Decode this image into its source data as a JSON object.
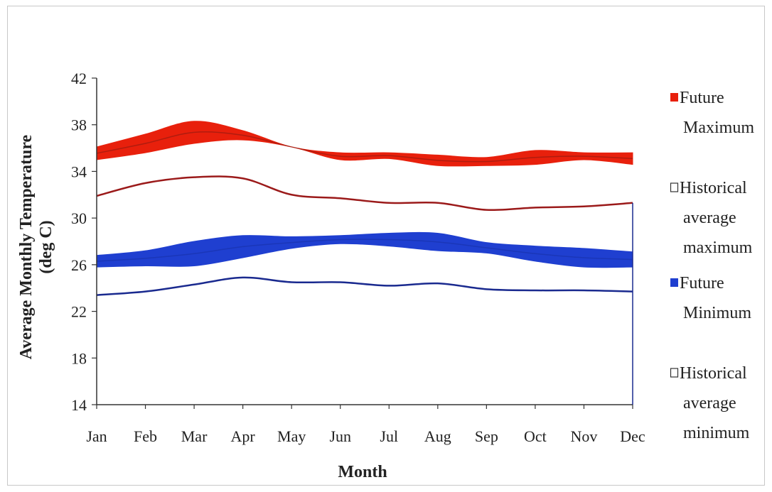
{
  "chart_data": {
    "type": "area",
    "xlabel": "Month",
    "ylabel": "Average Monthly Temperature",
    "ylabel_unit": "(deg C)",
    "categories": [
      "Jan",
      "Feb",
      "Mar",
      "Apr",
      "May",
      "Jun",
      "Jul",
      "Aug",
      "Sep",
      "Oct",
      "Nov",
      "Dec"
    ],
    "ylim": [
      14,
      42
    ],
    "yticks": [
      "14",
      "18",
      "22",
      "26",
      "30",
      "34",
      "38",
      "42"
    ],
    "grid": false,
    "legend_position": "right",
    "series": [
      {
        "name": "Future Maximum",
        "kind": "band",
        "color": "#e8200c",
        "low": [
          35.0,
          35.6,
          36.4,
          36.7,
          36.1,
          35.0,
          35.1,
          34.5,
          34.5,
          34.6,
          35.0,
          34.6
        ],
        "high": [
          36.1,
          37.2,
          38.3,
          37.5,
          36.1,
          35.6,
          35.6,
          35.4,
          35.2,
          35.8,
          35.6,
          35.6
        ]
      },
      {
        "name": "Historical average maximum",
        "kind": "line",
        "color": "#9b1a1a",
        "values": [
          31.9,
          33.0,
          33.5,
          33.4,
          32.0,
          31.7,
          31.3,
          31.3,
          30.7,
          30.9,
          31.0,
          31.3
        ]
      },
      {
        "name": "Future Minimum",
        "kind": "band",
        "color": "#1f3fd0",
        "low": [
          25.8,
          25.9,
          25.9,
          26.6,
          27.4,
          27.8,
          27.6,
          27.2,
          27.0,
          26.3,
          25.8,
          25.8
        ],
        "high": [
          26.8,
          27.2,
          28.0,
          28.5,
          28.4,
          28.5,
          28.7,
          28.7,
          27.9,
          27.6,
          27.4,
          27.1
        ]
      },
      {
        "name": "Historical average minimum",
        "kind": "line",
        "color": "#1a2a8f",
        "values": [
          23.4,
          23.7,
          24.3,
          24.9,
          24.5,
          24.5,
          24.2,
          24.4,
          23.9,
          23.8,
          23.8,
          23.7
        ]
      }
    ]
  },
  "legend": [
    {
      "lines": [
        "Future",
        "Maximum"
      ],
      "swatch": "filled",
      "color": "#e8200c"
    },
    {
      "lines": [
        "Historical",
        "average",
        "maximum"
      ],
      "swatch": "outline",
      "color": "#9b1a1a"
    },
    {
      "lines": [
        "Future",
        "Minimum"
      ],
      "swatch": "filled",
      "color": "#1f3fd0"
    },
    {
      "lines": [
        "Historical",
        "average",
        "minimum"
      ],
      "swatch": "outline",
      "color": "#1a2a8f"
    }
  ]
}
